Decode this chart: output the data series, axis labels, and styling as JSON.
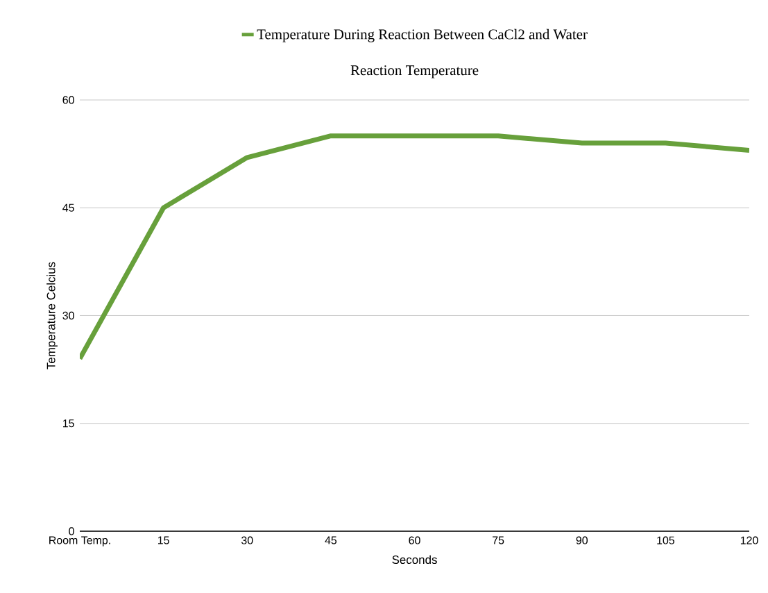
{
  "chart_data": {
    "type": "line",
    "title": "Reaction Temperature",
    "xlabel": "Seconds",
    "ylabel": "Temperature Celcius",
    "categories": [
      "Room Temp.",
      "15",
      "30",
      "45",
      "60",
      "75",
      "90",
      "105",
      "120"
    ],
    "series": [
      {
        "name": "Temperature During Reaction Between CaCl2 and Water",
        "color": "#67a03b",
        "values": [
          24,
          45,
          52,
          55,
          55,
          55,
          54,
          54,
          53
        ]
      }
    ],
    "ylim": [
      0,
      60
    ],
    "yticks": [
      0,
      15,
      30,
      45,
      60
    ],
    "grid": "y",
    "legend": "top",
    "marker": "none",
    "line_style": "solid"
  }
}
